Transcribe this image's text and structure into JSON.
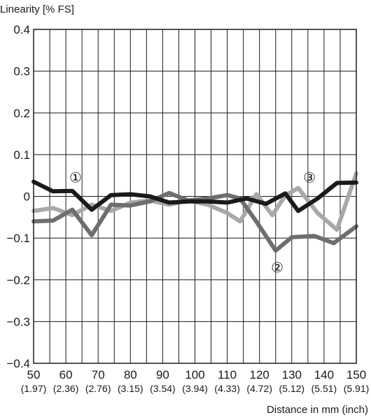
{
  "chart_data": {
    "type": "line",
    "ylabel": "Linearity [% FS]",
    "xlabel": "Distance in mm (inch)",
    "xlim": [
      50,
      150
    ],
    "ylim": [
      -0.4,
      0.4
    ],
    "grid": true,
    "x_ticks": [
      50,
      60,
      70,
      80,
      90,
      100,
      110,
      120,
      130,
      140,
      150
    ],
    "x_tick_labels": [
      "50",
      "60",
      "70",
      "80",
      "90",
      "100",
      "110",
      "120",
      "130",
      "140",
      "150"
    ],
    "x_tick_sublabels": [
      "(1.97)",
      "(2.36)",
      "(2.76)",
      "(3.15)",
      "(3.54)",
      "(3.94)",
      "(4.33)",
      "(4.72)",
      "(5.12)",
      "(5.51)",
      "(5.91)"
    ],
    "y_ticks": [
      0.4,
      0.3,
      0.2,
      0.1,
      0,
      -0.1,
      -0.2,
      -0.3,
      -0.4
    ],
    "y_tick_labels": [
      "0.4",
      "0.3",
      "0.2",
      "0.1",
      "0",
      "−0.1",
      "−0.2",
      "−0.3",
      "−0.4"
    ],
    "series": [
      {
        "color": "#1a1a1a",
        "x": [
          50,
          56,
          62,
          68,
          74,
          80,
          86,
          92,
          98,
          104,
          110,
          116,
          122,
          128,
          132,
          138,
          144,
          150
        ],
        "values": [
          0.035,
          0.012,
          0.013,
          -0.032,
          0.003,
          0.005,
          0.0,
          -0.015,
          -0.012,
          -0.012,
          -0.015,
          -0.005,
          -0.018,
          0.007,
          -0.035,
          -0.005,
          0.032,
          0.033
        ]
      },
      {
        "color": "#a8a8a8",
        "x": [
          50,
          56,
          62,
          68,
          74,
          80,
          86,
          92,
          98,
          104,
          110,
          114,
          119,
          124,
          128,
          132,
          138,
          144,
          150
        ],
        "values": [
          -0.035,
          -0.028,
          -0.045,
          -0.02,
          -0.035,
          -0.015,
          -0.01,
          -0.02,
          -0.01,
          -0.02,
          -0.04,
          -0.06,
          0.005,
          -0.045,
          0.002,
          0.02,
          -0.04,
          -0.08,
          0.055
        ]
      },
      {
        "color": "#6e6e6e",
        "x": [
          50,
          56,
          62,
          68,
          74,
          80,
          86,
          92,
          98,
          104,
          110,
          114,
          119,
          125,
          130,
          137,
          143,
          150
        ],
        "values": [
          -0.06,
          -0.058,
          -0.032,
          -0.093,
          -0.02,
          -0.022,
          -0.012,
          0.008,
          -0.01,
          -0.005,
          0.003,
          -0.005,
          -0.06,
          -0.13,
          -0.098,
          -0.095,
          -0.112,
          -0.072
        ]
      }
    ],
    "annotations": [
      {
        "label": "①",
        "x": 63,
        "y": 0.045
      },
      {
        "label": "②",
        "x": 125.5,
        "y": -0.17
      },
      {
        "label": "③",
        "x": 135.5,
        "y": 0.045
      }
    ]
  }
}
